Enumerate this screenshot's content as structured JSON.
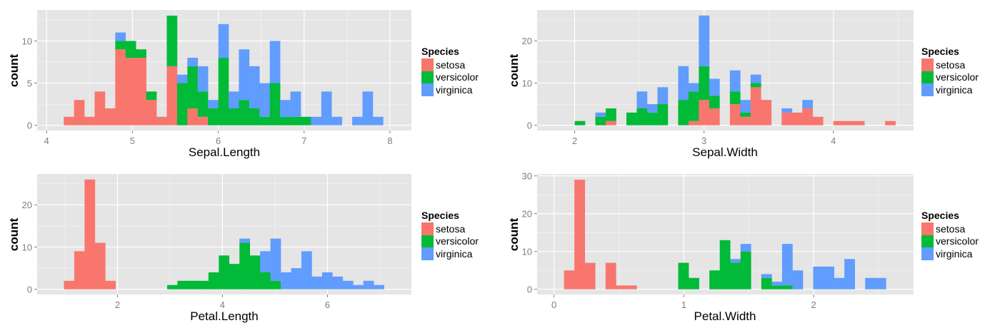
{
  "colors": {
    "setosa": "#F8766D",
    "versicolor": "#00BA38",
    "virginica": "#619CFF",
    "panel_bg": "#E5E5E5",
    "tick_text": "#7F7F7F"
  },
  "chart_data": [
    {
      "type": "bar",
      "stacked": true,
      "histogram": true,
      "xlabel": "Sepal.Length",
      "ylabel": "count",
      "bin_start": 4.2,
      "bin_width": 0.12,
      "xlim": [
        3.89,
        8.25
      ],
      "ylim": [
        -0.62,
        13.67
      ],
      "xticks": [
        4,
        5,
        6,
        7,
        8
      ],
      "yticks": [
        0,
        5,
        10
      ],
      "legend": {
        "title": "Species",
        "entries": [
          "setosa",
          "versicolor",
          "virginica"
        ],
        "position": "right"
      },
      "series": [
        {
          "name": "setosa",
          "values": [
            1,
            3,
            1,
            4,
            2,
            9,
            8,
            8,
            3,
            1,
            7,
            0,
            2,
            1,
            0,
            0,
            0,
            0,
            0,
            0,
            0,
            0,
            0,
            0,
            0,
            0,
            0,
            0,
            0,
            0,
            0
          ]
        },
        {
          "name": "versicolor",
          "values": [
            0,
            0,
            0,
            0,
            0,
            1,
            2,
            1,
            1,
            0,
            6,
            5,
            5,
            3,
            2,
            8,
            2,
            3,
            2,
            1,
            5,
            1,
            1,
            1,
            0,
            0,
            0,
            0,
            0,
            0,
            0
          ]
        },
        {
          "name": "virginica",
          "values": [
            0,
            0,
            0,
            0,
            0,
            1,
            0,
            0,
            0,
            0,
            0,
            1,
            1,
            3,
            1,
            4,
            2,
            6,
            5,
            4,
            5,
            2,
            3,
            0,
            1,
            4,
            1,
            0,
            1,
            4,
            1
          ]
        }
      ]
    },
    {
      "type": "bar",
      "stacked": true,
      "histogram": true,
      "xlabel": "Sepal.Width",
      "ylabel": "count",
      "bin_start": 2.0,
      "bin_width": 0.08,
      "xlim": [
        1.71,
        4.62
      ],
      "ylim": [
        -1.24,
        27.3
      ],
      "xticks": [
        2,
        3,
        4
      ],
      "yticks": [
        0,
        10,
        20
      ],
      "legend": {
        "title": "Species",
        "entries": [
          "setosa",
          "versicolor",
          "virginica"
        ],
        "position": "right"
      },
      "series": [
        {
          "name": "setosa",
          "values": [
            0,
            0,
            0,
            1,
            0,
            0,
            0,
            0,
            0,
            0,
            0,
            1,
            6,
            4,
            0,
            5,
            2,
            9,
            6,
            0,
            3,
            3,
            4,
            2,
            0,
            1,
            1,
            1,
            0,
            0,
            1
          ]
        },
        {
          "name": "versicolor",
          "values": [
            1,
            0,
            2,
            3,
            0,
            3,
            4,
            3,
            5,
            0,
            6,
            7,
            8,
            3,
            0,
            3,
            1,
            1,
            0,
            0,
            0,
            0,
            0,
            0,
            0,
            0,
            0,
            0,
            0,
            0,
            0
          ]
        },
        {
          "name": "virginica",
          "values": [
            0,
            0,
            1,
            0,
            0,
            0,
            4,
            2,
            4,
            0,
            8,
            2,
            12,
            4,
            0,
            5,
            3,
            2,
            0,
            0,
            1,
            0,
            2,
            0,
            0,
            0,
            0,
            0,
            0,
            0,
            0
          ]
        }
      ]
    },
    {
      "type": "bar",
      "stacked": true,
      "histogram": true,
      "xlabel": "Petal.Length",
      "ylabel": "count",
      "bin_start": 0.98,
      "bin_width": 0.1967,
      "xlim": [
        0.47,
        7.6
      ],
      "ylim": [
        -1.24,
        27.3
      ],
      "xticks": [
        2,
        4,
        6
      ],
      "yticks": [
        0,
        10,
        20
      ],
      "legend": {
        "title": "Species",
        "entries": [
          "setosa",
          "versicolor",
          "virginica"
        ],
        "position": "right"
      },
      "series": [
        {
          "name": "setosa",
          "values": [
            2,
            9,
            26,
            11,
            2,
            0,
            0,
            0,
            0,
            0,
            0,
            0,
            0,
            0,
            0,
            0,
            0,
            0,
            0,
            0,
            0,
            0,
            0,
            0,
            0,
            0,
            0,
            0,
            0,
            0,
            0
          ]
        },
        {
          "name": "versicolor",
          "values": [
            0,
            0,
            0,
            0,
            0,
            0,
            0,
            0,
            0,
            0,
            1,
            2,
            2,
            2,
            4,
            8,
            6,
            11,
            8,
            4,
            2,
            0,
            0,
            0,
            0,
            0,
            0,
            0,
            0,
            0,
            0
          ]
        },
        {
          "name": "virginica",
          "values": [
            0,
            0,
            0,
            0,
            0,
            0,
            0,
            0,
            0,
            0,
            0,
            0,
            0,
            0,
            0,
            0,
            0,
            1,
            0,
            5,
            10,
            4,
            5,
            9,
            3,
            4,
            3,
            2,
            1,
            2,
            1
          ]
        }
      ]
    },
    {
      "type": "bar",
      "stacked": true,
      "histogram": true,
      "xlabel": "Petal.Width",
      "ylabel": "count",
      "bin_start": 0.077,
      "bin_width": 0.08,
      "xlim": [
        -0.13,
        2.77
      ],
      "ylim": [
        -1.38,
        30.5
      ],
      "xticks": [
        0,
        1,
        2
      ],
      "yticks": [
        0,
        10,
        20,
        30
      ],
      "legend": {
        "title": "Species",
        "entries": [
          "setosa",
          "versicolor",
          "virginica"
        ],
        "position": "right"
      },
      "series": [
        {
          "name": "setosa",
          "values": [
            5,
            29,
            7,
            0,
            7,
            1,
            1,
            0,
            0,
            0,
            0,
            0,
            0,
            0,
            0,
            0,
            0,
            0,
            0,
            0,
            0,
            0,
            0,
            0,
            0,
            0,
            0,
            0,
            0,
            0,
            0
          ]
        },
        {
          "name": "versicolor",
          "values": [
            0,
            0,
            0,
            0,
            0,
            0,
            0,
            0,
            0,
            0,
            0,
            7,
            3,
            0,
            5,
            13,
            7,
            10,
            0,
            3,
            1,
            1,
            0,
            0,
            0,
            0,
            0,
            0,
            0,
            0,
            0
          ]
        },
        {
          "name": "virginica",
          "values": [
            0,
            0,
            0,
            0,
            0,
            0,
            0,
            0,
            0,
            0,
            0,
            0,
            0,
            0,
            0,
            0,
            1,
            2,
            0,
            1,
            1,
            11,
            5,
            0,
            6,
            6,
            3,
            8,
            0,
            3,
            3
          ]
        }
      ]
    }
  ]
}
